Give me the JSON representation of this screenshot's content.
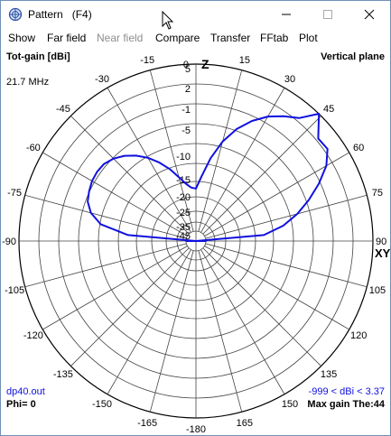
{
  "window": {
    "title": "Pattern   (F4)",
    "icons": {
      "app": "antenna-pattern-icon",
      "minimize": "minimize-icon",
      "maximize": "maximize-icon",
      "close": "close-icon"
    }
  },
  "menu": [
    {
      "label": "Show",
      "enabled": true
    },
    {
      "label": "Far field",
      "enabled": true
    },
    {
      "label": "Near field",
      "enabled": false
    },
    {
      "label": "Compare",
      "enabled": true
    },
    {
      "label": "Transfer",
      "enabled": true
    },
    {
      "label": "FFtab",
      "enabled": true
    },
    {
      "label": "Plot",
      "enabled": true
    }
  ],
  "header": {
    "left": "Tot-gain [dBi]",
    "right": "Vertical plane",
    "frequency": "21.7 MHz"
  },
  "footer": {
    "file": "dp40.out",
    "phi": "Phi= 0",
    "range": "-999 < dBi < 3.37",
    "max_gain": "Max gain The:44"
  },
  "chart_data": {
    "type": "polar",
    "plane": "vertical",
    "axis_labels": {
      "top": "Z",
      "right": "XY"
    },
    "angle_labels": [
      "0",
      "15",
      "30",
      "45",
      "60",
      "75",
      "90",
      "105",
      "120",
      "135",
      "150",
      "165",
      "-180",
      "-165",
      "-150",
      "-135",
      "-120",
      "-105",
      "-90",
      "-75",
      "-60",
      "-45",
      "-30",
      "-15"
    ],
    "radial_tick_labels": [
      "5",
      "2",
      "-1",
      "-5",
      "-10",
      "-15",
      "-20",
      "-25",
      "-35",
      "-45"
    ],
    "gain_max_dbi": 3.37,
    "series_color": "#1010e0",
    "pattern": {
      "angle_deg": [
        -90,
        -85,
        -80,
        -75,
        -70,
        -65,
        -60,
        -55,
        -50,
        -45,
        -40,
        -35,
        -30,
        -25,
        -20,
        -15,
        -10,
        -5,
        0,
        5,
        10,
        15,
        20,
        25,
        30,
        35,
        40,
        44,
        50,
        55,
        60,
        65,
        70,
        75,
        80,
        85,
        90
      ],
      "gain_dbi": [
        -45,
        -13,
        -7,
        -5,
        -4,
        -3.6,
        -3.3,
        -3.2,
        -3.3,
        -3.8,
        -4.6,
        -5.7,
        -7.1,
        -8.9,
        -11,
        -13.5,
        -15.7,
        -17.1,
        -17.5,
        -13.8,
        -9.4,
        -5.9,
        -3.4,
        -1.6,
        -0.2,
        0.8,
        1.7,
        3.37,
        1.6,
        1.7,
        0.6,
        -1.2,
        -3.3,
        -5.6,
        -8.5,
        -13,
        -45
      ]
    }
  }
}
